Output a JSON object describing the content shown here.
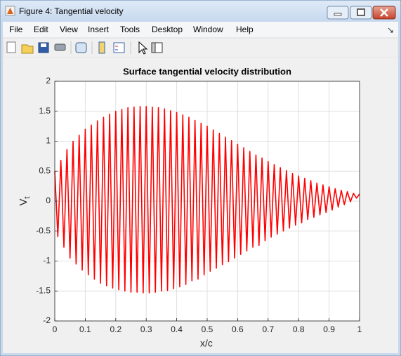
{
  "window": {
    "title": "Figure 4: Tangential velocity",
    "menu": [
      "File",
      "Edit",
      "View",
      "Insert",
      "Tools",
      "Desktop",
      "Window",
      "Help"
    ]
  },
  "chart_data": {
    "type": "line",
    "title": "Surface tangential velocity distribution",
    "xlabel": "x/c",
    "ylabel": {
      "text": "V",
      "subscript": "t"
    },
    "color": "#ff0000",
    "grid": true,
    "xlim": [
      0,
      1
    ],
    "ylim": [
      -2,
      2
    ],
    "xticks": [
      0,
      0.1,
      0.2,
      0.3,
      0.4,
      0.5,
      0.6,
      0.7,
      0.8,
      0.9,
      1
    ],
    "yticks": [
      -2,
      -1.5,
      -1,
      -0.5,
      0,
      0.5,
      1,
      1.5,
      2
    ],
    "x": [
      0,
      0.01,
      0.02,
      0.03,
      0.04,
      0.05,
      0.06,
      0.07,
      0.08,
      0.09,
      0.1,
      0.11,
      0.12,
      0.13,
      0.14,
      0.15,
      0.16,
      0.17,
      0.18,
      0.19,
      0.2,
      0.21,
      0.22,
      0.23,
      0.24,
      0.25,
      0.26,
      0.27,
      0.28,
      0.29,
      0.3,
      0.31,
      0.32,
      0.33,
      0.34,
      0.35,
      0.36,
      0.37,
      0.38,
      0.39,
      0.4,
      0.41,
      0.42,
      0.43,
      0.44,
      0.45,
      0.46,
      0.47,
      0.48,
      0.49,
      0.5,
      0.51,
      0.52,
      0.53,
      0.54,
      0.55,
      0.56,
      0.57,
      0.58,
      0.59,
      0.6,
      0.61,
      0.62,
      0.63,
      0.64,
      0.65,
      0.66,
      0.67,
      0.68,
      0.69,
      0.7,
      0.71,
      0.72,
      0.73,
      0.74,
      0.75,
      0.76,
      0.77,
      0.78,
      0.79,
      0.8,
      0.81,
      0.82,
      0.83,
      0.84,
      0.85,
      0.86,
      0.87,
      0.88,
      0.89,
      0.9,
      0.91,
      0.92,
      0.93,
      0.94,
      0.95,
      0.96,
      0.97,
      0.98,
      0.99,
      1
    ],
    "values": [
      0.5,
      -0.59,
      0.68,
      -0.77,
      0.86,
      -0.95,
      1.0,
      -1.05,
      1.1,
      -1.15,
      1.2,
      -1.23,
      1.27,
      -1.3,
      1.34,
      -1.37,
      1.4,
      -1.41,
      1.45,
      -1.45,
      1.5,
      -1.48,
      1.53,
      -1.5,
      1.56,
      -1.52,
      1.57,
      -1.52,
      1.58,
      -1.53,
      1.58,
      -1.53,
      1.57,
      -1.52,
      1.56,
      -1.5,
      1.54,
      -1.49,
      1.51,
      -1.46,
      1.48,
      -1.43,
      1.44,
      -1.39,
      1.4,
      -1.33,
      1.35,
      -1.3,
      1.3,
      -1.23,
      1.25,
      -1.17,
      1.19,
      -1.12,
      1.13,
      -1.06,
      1.07,
      -1.01,
      1.01,
      -0.95,
      0.95,
      -0.89,
      0.89,
      -0.83,
      0.83,
      -0.77,
      0.77,
      -0.74,
      0.72,
      -0.66,
      0.66,
      -0.6,
      0.61,
      -0.55,
      0.56,
      -0.5,
      0.51,
      -0.45,
      0.46,
      -0.4,
      0.42,
      -0.36,
      0.38,
      -0.31,
      0.34,
      -0.27,
      0.3,
      -0.23,
      0.27,
      -0.19,
      0.24,
      -0.15,
      0.21,
      -0.1,
      0.18,
      -0.06,
      0.16,
      -0.01,
      0.13,
      0.05,
      0.12
    ]
  }
}
